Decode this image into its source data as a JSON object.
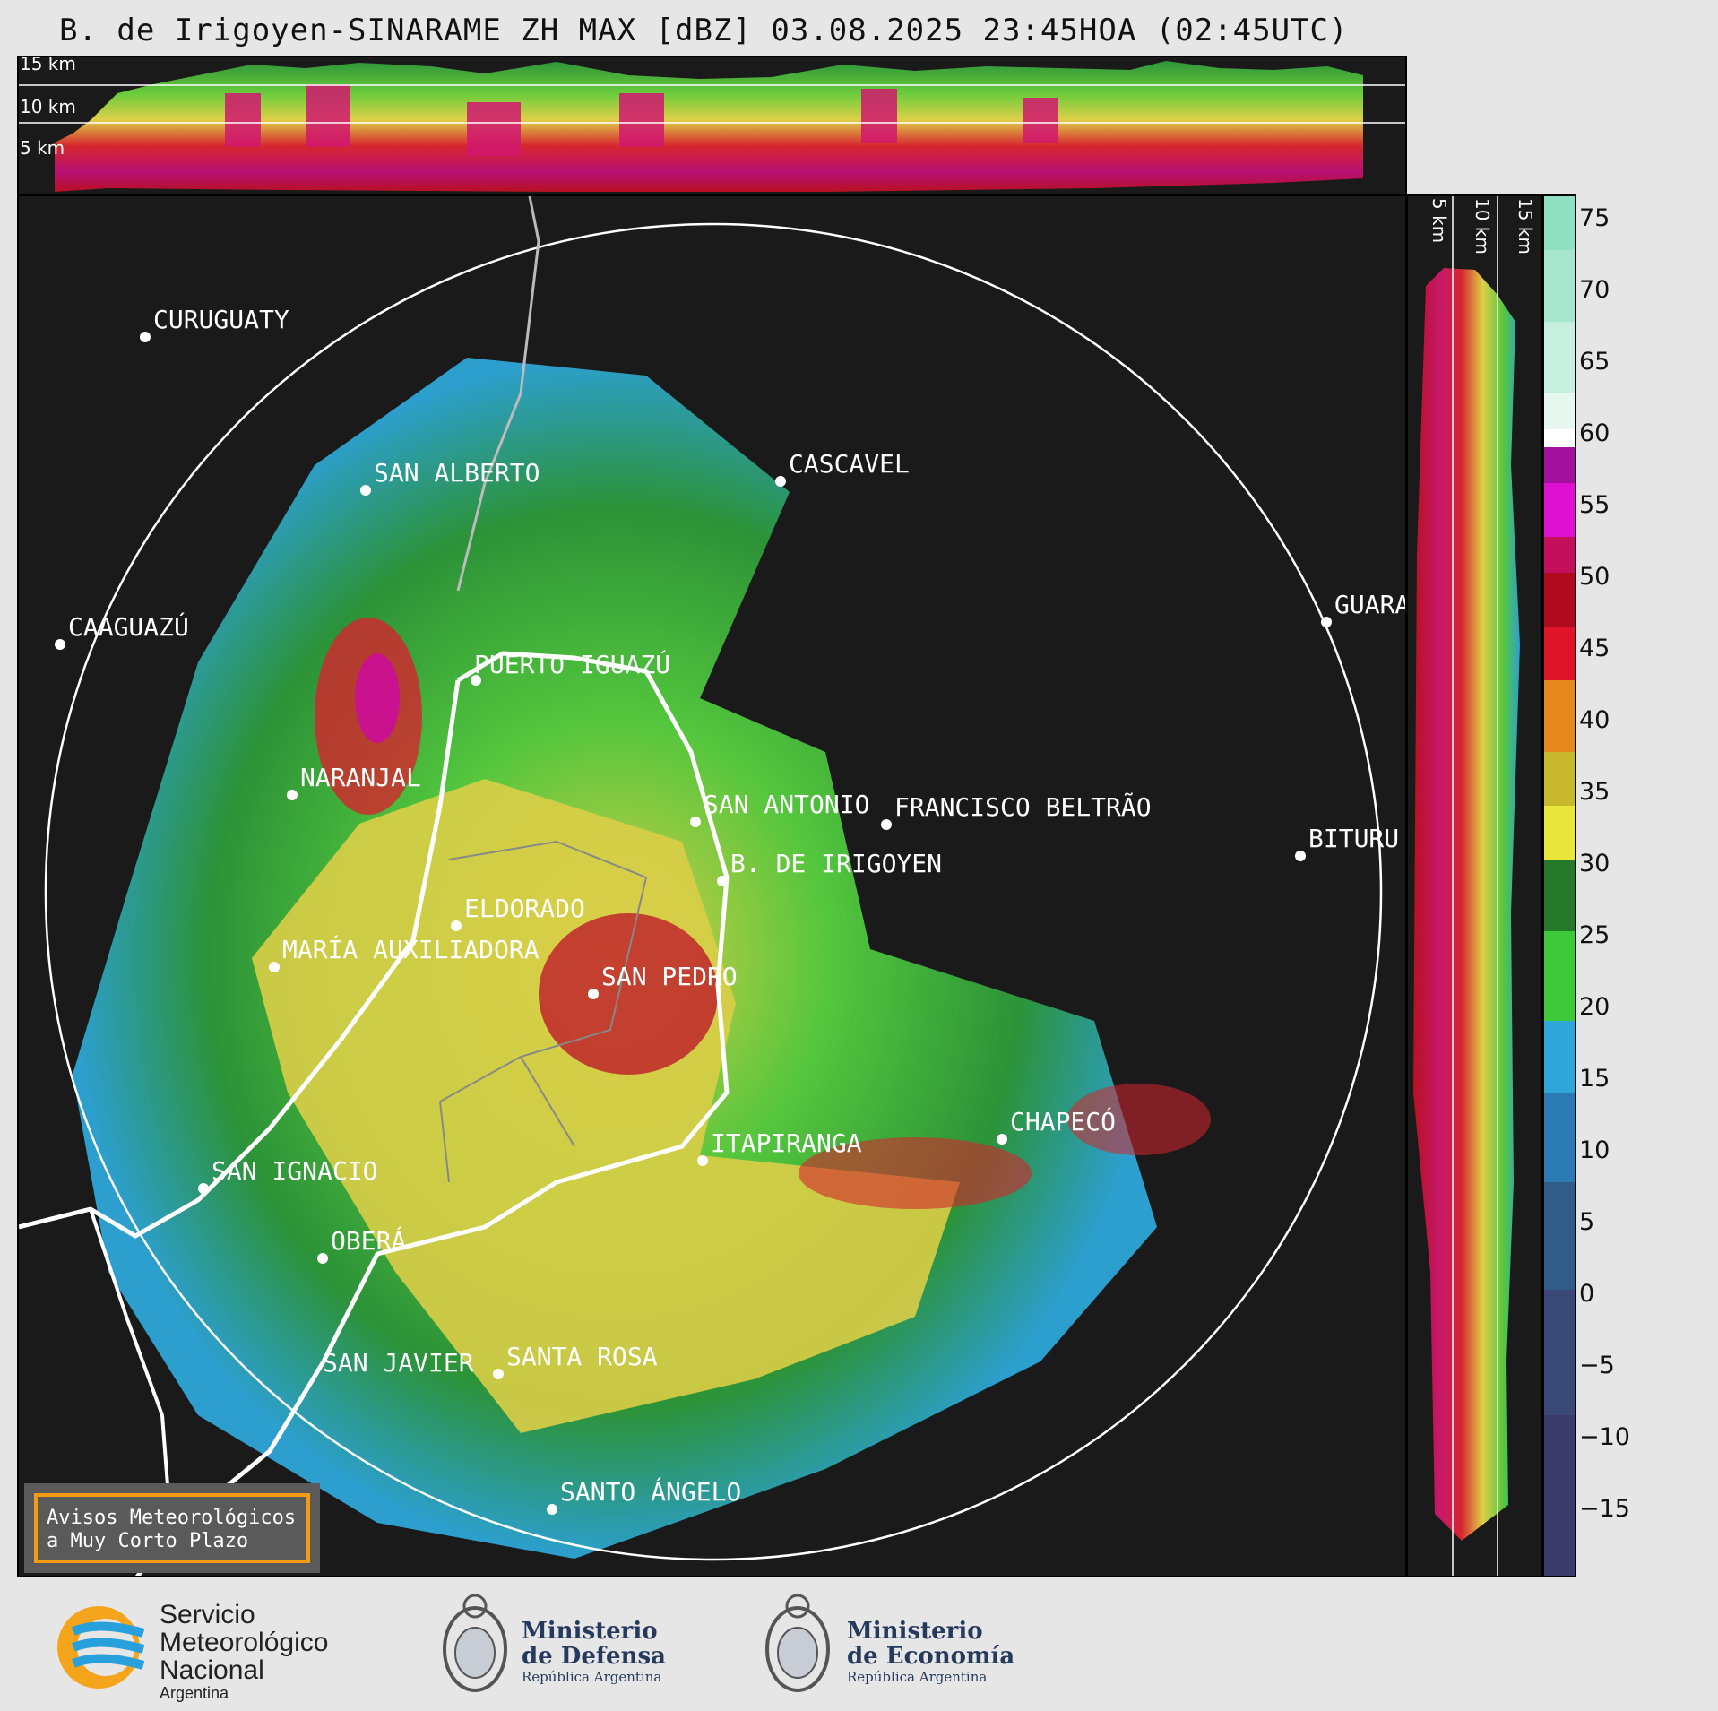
{
  "title": "B. de Irigoyen-SINARAME ZH MAX [dBZ] 03.08.2025 23:45HOA (02:45UTC)",
  "top_profile": {
    "heights": [
      "15 km",
      "10 km",
      "5 km"
    ]
  },
  "right_profile": {
    "heights": [
      "5 km",
      "10 km",
      "15 km"
    ]
  },
  "colorbar": {
    "ticks": [
      "75",
      "70",
      "65",
      "60",
      "55",
      "50",
      "45",
      "40",
      "35",
      "30",
      "25",
      "20",
      "15",
      "10",
      "5",
      "0",
      "−5",
      "−10",
      "−15"
    ]
  },
  "places": [
    {
      "id": "curuguaty",
      "name": "CURUGUATY"
    },
    {
      "id": "san-alberto",
      "name": "SAN ALBERTO"
    },
    {
      "id": "cascavel",
      "name": "CASCAVEL"
    },
    {
      "id": "caaguazu",
      "name": "CAAGUAZÚ"
    },
    {
      "id": "guara",
      "name": "GUARA"
    },
    {
      "id": "puerto-iguazu",
      "name": "PUERTO IGUAZÚ"
    },
    {
      "id": "naranjal",
      "name": "NARANJAL"
    },
    {
      "id": "san-antonio",
      "name": "SAN ANTONIO"
    },
    {
      "id": "francisco-beltrao",
      "name": "FRANCISCO BELTRÃO"
    },
    {
      "id": "bituru",
      "name": "BITURU"
    },
    {
      "id": "b-de-irigoyen",
      "name": "B. DE IRIGOYEN"
    },
    {
      "id": "eldorado",
      "name": "ELDORADO"
    },
    {
      "id": "maria-auxiliadora",
      "name": "MARÍA AUXILIADORA"
    },
    {
      "id": "san-pedro",
      "name": "SAN PEDRO"
    },
    {
      "id": "chapeco",
      "name": "CHAPECÓ"
    },
    {
      "id": "itapiranga",
      "name": "ITAPIRANGA"
    },
    {
      "id": "san-ignacio",
      "name": "SAN IGNACIO"
    },
    {
      "id": "obera",
      "name": "OBERÁ"
    },
    {
      "id": "san-javier",
      "name": "SAN JAVIER"
    },
    {
      "id": "santa-rosa",
      "name": "SANTA ROSA"
    },
    {
      "id": "santo-angelo",
      "name": "SANTO ÁNGELO"
    }
  ],
  "notice": {
    "line1": "Avisos Meteorológicos",
    "line2": "a Muy Corto Plazo"
  },
  "footer": {
    "smn": {
      "line1": "Servicio",
      "line2": "Meteorológico",
      "line3": "Nacional",
      "line4": "Argentina"
    },
    "defensa": {
      "line1": "Ministerio",
      "line2": "de Defensa",
      "line3": "República Argentina"
    },
    "economia": {
      "line1": "Ministerio",
      "line2": "de Economía",
      "line3": "República Argentina"
    }
  }
}
